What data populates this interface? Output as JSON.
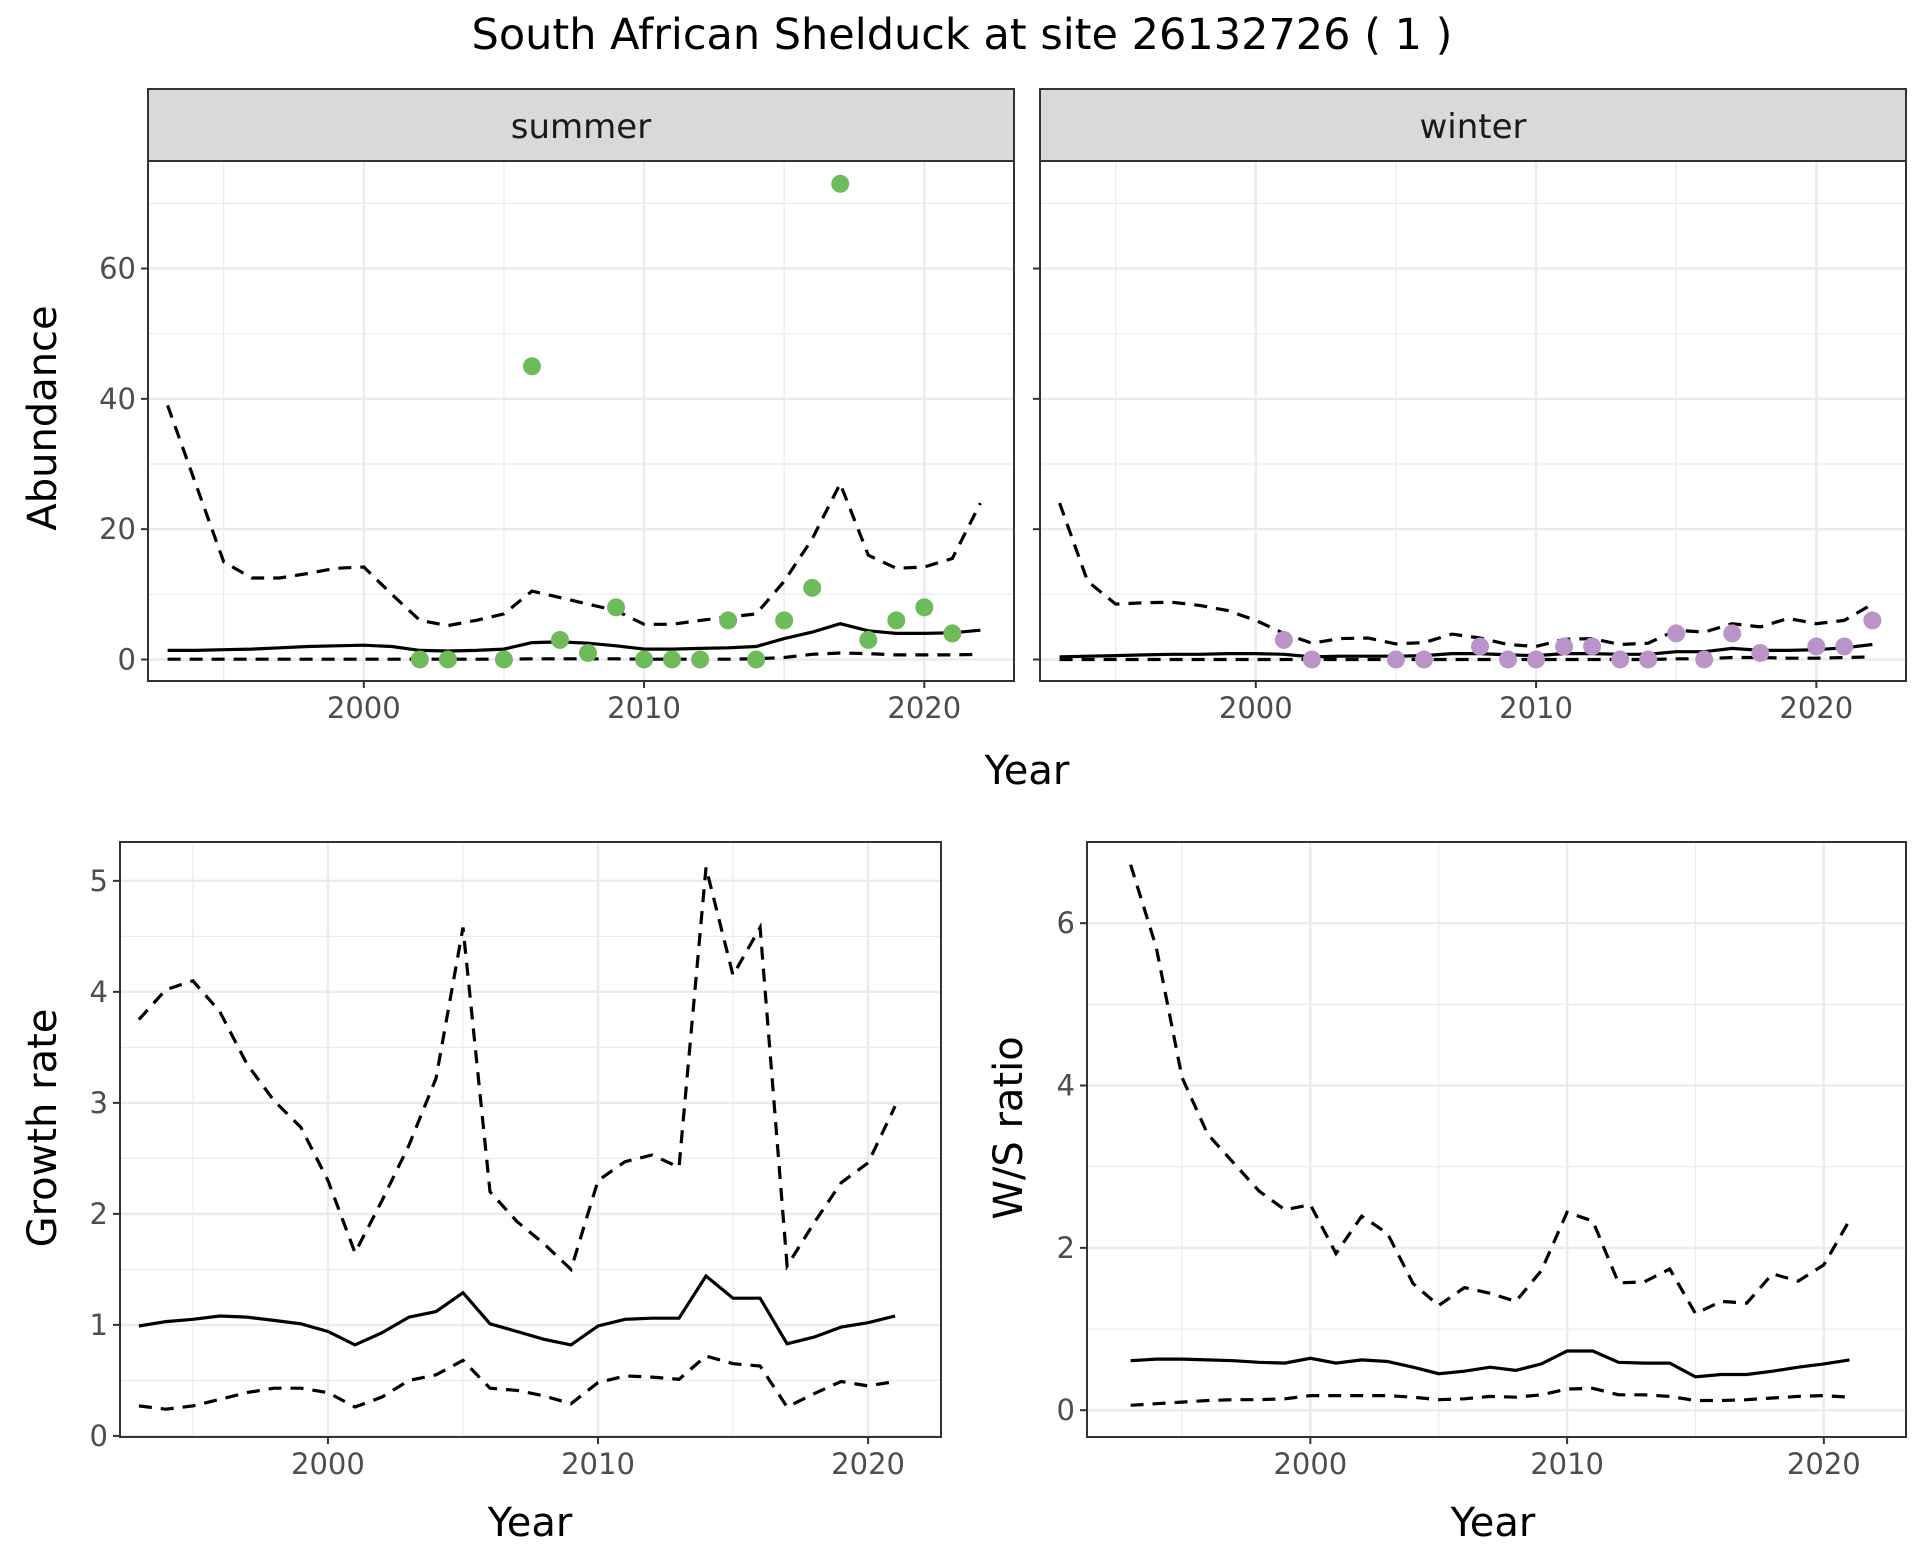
{
  "title": "South African Shelduck at site 26132726 ( 1 )",
  "colors": {
    "summer_points": "#6dbb5a",
    "winter_points": "#b894c9",
    "lines": "#000000",
    "strip_fill": "#d9d9d9",
    "grid": "#ebebeb"
  },
  "chart_data": [
    {
      "type": "scatter",
      "facet": "summer",
      "xlabel": "Year",
      "ylabel": "Abundance",
      "xlim": [
        1992.3,
        2023.2
      ],
      "ylim": [
        -3.3,
        76.5
      ],
      "x_ticks": [
        2000,
        2010,
        2020
      ],
      "y_ticks": [
        0,
        20,
        40,
        60
      ],
      "grid": true,
      "points": {
        "x": [
          2002,
          2003,
          2005,
          2006,
          2007,
          2008,
          2009,
          2010,
          2011,
          2012,
          2013,
          2014,
          2015,
          2016,
          2017,
          2018,
          2019,
          2020,
          2021
        ],
        "y": [
          0,
          0,
          0,
          45,
          3,
          1,
          8,
          0,
          0,
          0,
          6,
          0,
          6,
          11,
          73,
          3,
          6,
          8,
          4
        ]
      },
      "series": [
        {
          "style": "solid",
          "x": [
            1993,
            1994,
            1995,
            1996,
            1997,
            1998,
            1999,
            2000,
            2001,
            2002,
            2003,
            2004,
            2005,
            2006,
            2007,
            2008,
            2009,
            2010,
            2011,
            2012,
            2013,
            2014,
            2015,
            2016,
            2017,
            2018,
            2019,
            2020,
            2021,
            2022
          ],
          "y": [
            1.4,
            1.4,
            1.5,
            1.6,
            1.8,
            2.0,
            2.1,
            2.2,
            2.0,
            1.4,
            1.3,
            1.4,
            1.6,
            2.6,
            2.7,
            2.5,
            2.1,
            1.6,
            1.6,
            1.7,
            1.8,
            2.0,
            3.2,
            4.2,
            5.5,
            4.4,
            4.0,
            4.0,
            4.1,
            4.5
          ]
        },
        {
          "style": "dashed",
          "x": [
            1993,
            1994,
            1995,
            1996,
            1997,
            1998,
            1999,
            2000,
            2001,
            2002,
            2003,
            2004,
            2005,
            2006,
            2007,
            2008,
            2009,
            2010,
            2011,
            2012,
            2013,
            2014,
            2015,
            2016,
            2017,
            2018,
            2019,
            2020,
            2021,
            2022
          ],
          "y": [
            39,
            27,
            15,
            12.5,
            12.5,
            13.2,
            14,
            14.2,
            10,
            6,
            5.2,
            6,
            7,
            10.5,
            9.5,
            8.5,
            7.5,
            5.4,
            5.4,
            6,
            6.5,
            7,
            12,
            18.5,
            27,
            16,
            14,
            14.2,
            15.5,
            24
          ]
        },
        {
          "style": "dashed",
          "x": [
            1993,
            1994,
            1995,
            1996,
            1997,
            1998,
            1999,
            2000,
            2001,
            2002,
            2003,
            2004,
            2005,
            2006,
            2007,
            2008,
            2009,
            2010,
            2011,
            2012,
            2013,
            2014,
            2015,
            2016,
            2017,
            2018,
            2019,
            2020,
            2021,
            2022
          ],
          "y": [
            0.05,
            0.05,
            0.05,
            0.05,
            0.05,
            0.05,
            0.05,
            0.05,
            0.05,
            0.05,
            0.05,
            0.05,
            0.05,
            0.1,
            0.1,
            0.1,
            0.1,
            0.05,
            0.05,
            0.05,
            0.05,
            0.1,
            0.3,
            0.8,
            1.0,
            0.9,
            0.7,
            0.7,
            0.7,
            0.8
          ]
        }
      ]
    },
    {
      "type": "scatter",
      "facet": "winter",
      "xlabel": "Year",
      "ylabel": "Abundance",
      "xlim": [
        1992.3,
        2023.2
      ],
      "ylim": [
        -3.3,
        76.5
      ],
      "x_ticks": [
        2000,
        2010,
        2020
      ],
      "y_ticks": [
        0,
        20,
        40,
        60
      ],
      "grid": true,
      "points": {
        "x": [
          2001,
          2002,
          2005,
          2006,
          2008,
          2009,
          2010,
          2011,
          2012,
          2013,
          2014,
          2015,
          2016,
          2017,
          2018,
          2020,
          2021,
          2022
        ],
        "y": [
          3,
          0,
          0,
          0,
          2,
          0,
          0,
          2,
          2,
          0,
          0,
          4,
          0,
          4,
          1,
          2,
          2,
          6
        ]
      },
      "series": [
        {
          "style": "solid",
          "x": [
            1993,
            1994,
            1995,
            1996,
            1997,
            1998,
            1999,
            2000,
            2001,
            2002,
            2003,
            2004,
            2005,
            2006,
            2007,
            2008,
            2009,
            2010,
            2011,
            2012,
            2013,
            2014,
            2015,
            2016,
            2017,
            2018,
            2019,
            2020,
            2021,
            2022
          ],
          "y": [
            0.4,
            0.5,
            0.6,
            0.7,
            0.8,
            0.8,
            0.9,
            0.9,
            0.8,
            0.4,
            0.5,
            0.5,
            0.5,
            0.6,
            0.9,
            0.9,
            0.7,
            0.6,
            0.9,
            0.9,
            0.8,
            0.8,
            1.2,
            1.2,
            1.7,
            1.4,
            1.4,
            1.5,
            1.8,
            2.3
          ]
        },
        {
          "style": "dashed",
          "x": [
            1993,
            1994,
            1995,
            1996,
            1997,
            1998,
            1999,
            2000,
            2001,
            2002,
            2003,
            2004,
            2005,
            2006,
            2007,
            2008,
            2009,
            2010,
            2011,
            2012,
            2013,
            2014,
            2015,
            2016,
            2017,
            2018,
            2019,
            2020,
            2021,
            2022
          ],
          "y": [
            24,
            12,
            8.5,
            8.7,
            8.8,
            8.3,
            7.5,
            6,
            4,
            2.5,
            3.2,
            3.3,
            2.4,
            2.6,
            3.9,
            3.3,
            2.3,
            2.0,
            3.1,
            3.2,
            2.3,
            2.5,
            4.5,
            4.2,
            5.5,
            5.0,
            6.3,
            5.5,
            6.0,
            8.5
          ]
        },
        {
          "style": "dashed",
          "x": [
            1993,
            1994,
            1995,
            1996,
            1997,
            1998,
            1999,
            2000,
            2001,
            2002,
            2003,
            2004,
            2005,
            2006,
            2007,
            2008,
            2009,
            2010,
            2011,
            2012,
            2013,
            2014,
            2015,
            2016,
            2017,
            2018,
            2019,
            2020,
            2021,
            2022
          ],
          "y": [
            0,
            0,
            0,
            0,
            0,
            0,
            0,
            0,
            0,
            0,
            0,
            0,
            0,
            0,
            0,
            0,
            0,
            0,
            0,
            0,
            0,
            0,
            0.1,
            0.1,
            0.3,
            0.3,
            0.2,
            0.2,
            0.3,
            0.4
          ]
        }
      ]
    },
    {
      "type": "line",
      "xlabel": "Year",
      "ylabel": "Growth rate",
      "xlim": [
        1992.3,
        2022.7
      ],
      "ylim": [
        -0.01,
        5.35
      ],
      "x_ticks": [
        2000,
        2010,
        2020
      ],
      "y_ticks": [
        0,
        1,
        2,
        3,
        4,
        5
      ],
      "grid": true,
      "series": [
        {
          "style": "solid",
          "x": [
            1993,
            1994,
            1995,
            1996,
            1997,
            1998,
            1999,
            2000,
            2001,
            2002,
            2003,
            2004,
            2005,
            2006,
            2007,
            2008,
            2009,
            2010,
            2011,
            2012,
            2013,
            2014,
            2015,
            2016,
            2017,
            2018,
            2019,
            2020,
            2021
          ],
          "y": [
            0.99,
            1.03,
            1.05,
            1.08,
            1.07,
            1.04,
            1.01,
            0.94,
            0.82,
            0.93,
            1.07,
            1.12,
            1.29,
            1.01,
            0.94,
            0.87,
            0.82,
            0.99,
            1.05,
            1.06,
            1.06,
            1.44,
            1.24,
            1.24,
            0.83,
            0.89,
            0.98,
            1.02,
            1.08
          ]
        },
        {
          "style": "dashed",
          "x": [
            1993,
            1994,
            1995,
            1996,
            1997,
            1998,
            1999,
            2000,
            2001,
            2002,
            2003,
            2004,
            2005,
            2006,
            2007,
            2008,
            2009,
            2010,
            2011,
            2012,
            2013,
            2014,
            2015,
            2016,
            2017,
            2018,
            2019,
            2020,
            2021
          ],
          "y": [
            3.75,
            4.02,
            4.1,
            3.82,
            3.35,
            3.02,
            2.78,
            2.3,
            1.65,
            2.12,
            2.62,
            3.22,
            4.58,
            2.2,
            1.93,
            1.73,
            1.5,
            2.3,
            2.47,
            2.53,
            2.42,
            5.12,
            4.15,
            4.58,
            1.53,
            1.92,
            2.28,
            2.46,
            2.97
          ]
        },
        {
          "style": "dashed",
          "x": [
            1993,
            1994,
            1995,
            1996,
            1997,
            1998,
            1999,
            2000,
            2001,
            2002,
            2003,
            2004,
            2005,
            2006,
            2007,
            2008,
            2009,
            2010,
            2011,
            2012,
            2013,
            2014,
            2015,
            2016,
            2017,
            2018,
            2019,
            2020,
            2021
          ],
          "y": [
            0.27,
            0.24,
            0.27,
            0.33,
            0.39,
            0.43,
            0.43,
            0.39,
            0.26,
            0.35,
            0.5,
            0.55,
            0.68,
            0.43,
            0.41,
            0.36,
            0.29,
            0.48,
            0.54,
            0.53,
            0.51,
            0.72,
            0.65,
            0.63,
            0.26,
            0.38,
            0.49,
            0.45,
            0.49
          ]
        }
      ]
    },
    {
      "type": "line",
      "xlabel": "Year",
      "ylabel": "W/S ratio",
      "xlim": [
        1991.3,
        2023.2
      ],
      "ylim": [
        -0.33,
        7.0
      ],
      "x_ticks": [
        2000,
        2010,
        2020
      ],
      "y_ticks": [
        0,
        2,
        4,
        6
      ],
      "grid": true,
      "series": [
        {
          "style": "solid",
          "x": [
            1993,
            1994,
            1995,
            1996,
            1997,
            1998,
            1999,
            2000,
            2001,
            2002,
            2003,
            2004,
            2005,
            2006,
            2007,
            2008,
            2009,
            2010,
            2011,
            2012,
            2013,
            2014,
            2015,
            2016,
            2017,
            2018,
            2019,
            2020,
            2021
          ],
          "y": [
            0.61,
            0.63,
            0.63,
            0.62,
            0.61,
            0.59,
            0.58,
            0.64,
            0.58,
            0.62,
            0.6,
            0.53,
            0.45,
            0.48,
            0.53,
            0.49,
            0.57,
            0.73,
            0.73,
            0.59,
            0.58,
            0.58,
            0.41,
            0.44,
            0.44,
            0.48,
            0.53,
            0.57,
            0.62
          ]
        },
        {
          "style": "dashed",
          "x": [
            1993,
            1994,
            1995,
            1996,
            1997,
            1998,
            1999,
            2000,
            2001,
            2002,
            2003,
            2004,
            2005,
            2006,
            2007,
            2008,
            2009,
            2010,
            2011,
            2012,
            2013,
            2014,
            2015,
            2016,
            2017,
            2018,
            2019,
            2020,
            2021
          ],
          "y": [
            6.72,
            5.7,
            4.1,
            3.4,
            3.05,
            2.7,
            2.47,
            2.53,
            1.93,
            2.39,
            2.18,
            1.56,
            1.29,
            1.51,
            1.44,
            1.34,
            1.72,
            2.44,
            2.33,
            1.57,
            1.58,
            1.74,
            1.19,
            1.34,
            1.32,
            1.68,
            1.59,
            1.79,
            2.34
          ]
        },
        {
          "style": "dashed",
          "x": [
            1993,
            1994,
            1995,
            1996,
            1997,
            1998,
            1999,
            2000,
            2001,
            2002,
            2003,
            2004,
            2005,
            2006,
            2007,
            2008,
            2009,
            2010,
            2011,
            2012,
            2013,
            2014,
            2015,
            2016,
            2017,
            2018,
            2019,
            2020,
            2021
          ],
          "y": [
            0.06,
            0.08,
            0.1,
            0.12,
            0.13,
            0.13,
            0.14,
            0.18,
            0.18,
            0.18,
            0.18,
            0.16,
            0.13,
            0.14,
            0.17,
            0.16,
            0.19,
            0.26,
            0.27,
            0.19,
            0.19,
            0.17,
            0.12,
            0.12,
            0.13,
            0.15,
            0.17,
            0.18,
            0.16
          ]
        }
      ]
    }
  ]
}
